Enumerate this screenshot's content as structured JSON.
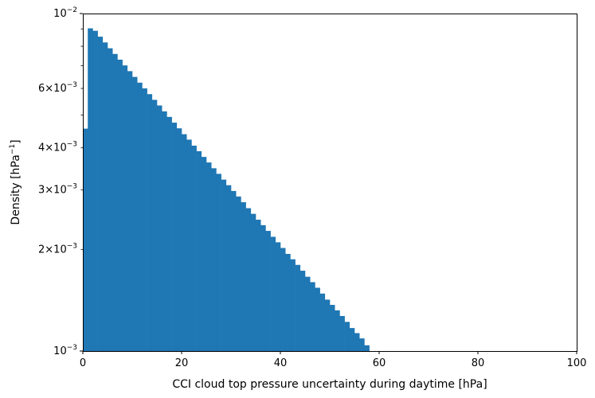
{
  "chart_data": {
    "type": "bar",
    "subtype": "histogram",
    "title": "",
    "xlabel": "CCI cloud top pressure uncertainty during daytime [hPa]",
    "ylabel_main": "Density [hPa",
    "ylabel_exp": "−1",
    "ylabel_close": "]",
    "xlim": [
      0,
      100
    ],
    "ylim": [
      0.001,
      0.01
    ],
    "yscale": "log",
    "bin_width": 1,
    "grid": false,
    "x_ticks": [
      {
        "value": 0,
        "label": "0"
      },
      {
        "value": 20,
        "label": "20"
      },
      {
        "value": 40,
        "label": "40"
      },
      {
        "value": 60,
        "label": "60"
      },
      {
        "value": 80,
        "label": "80"
      },
      {
        "value": 100,
        "label": "100"
      }
    ],
    "y_major_ticks": [
      {
        "value": 0.001,
        "base": "10",
        "exp": "−3"
      },
      {
        "value": 0.01,
        "base": "10",
        "exp": "−2"
      }
    ],
    "y_minor_ticks": [
      {
        "value": 0.002,
        "mant": "2",
        "base": "10",
        "exp": "−3"
      },
      {
        "value": 0.003,
        "mant": "3",
        "base": "10",
        "exp": "−3"
      },
      {
        "value": 0.004,
        "mant": "4",
        "base": "10",
        "exp": "−3"
      },
      {
        "value": 0.005,
        "mant": "",
        "base": "",
        "exp": ""
      },
      {
        "value": 0.006,
        "mant": "6",
        "base": "10",
        "exp": "−3"
      },
      {
        "value": 0.007,
        "mant": "",
        "base": "",
        "exp": ""
      },
      {
        "value": 0.008,
        "mant": "",
        "base": "",
        "exp": ""
      },
      {
        "value": 0.009,
        "mant": "",
        "base": "",
        "exp": ""
      }
    ],
    "bin_edges_start": 0,
    "values": [
      0.00456,
      0.00904,
      0.00889,
      0.00854,
      0.00821,
      0.00789,
      0.00759,
      0.0073,
      0.00702,
      0.00675,
      0.00649,
      0.00624,
      0.006,
      0.00577,
      0.00555,
      0.00534,
      0.00513,
      0.00494,
      0.00475,
      0.00457,
      0.00439,
      0.00423,
      0.00406,
      0.00391,
      0.00376,
      0.00362,
      0.00348,
      0.00335,
      0.00322,
      0.0031,
      0.00298,
      0.00287,
      0.00276,
      0.00265,
      0.00255,
      0.00245,
      0.00236,
      0.00227,
      0.00218,
      0.0021,
      0.00202,
      0.00194,
      0.00187,
      0.0018,
      0.00173,
      0.00166,
      0.0016,
      0.00154,
      0.00148,
      0.00142,
      0.00137,
      0.00132,
      0.00127,
      0.00122,
      0.00117,
      0.00113,
      0.00109,
      0.00104,
      0.001,
      0.00097,
      0.00093,
      0.00089,
      0.00086,
      0.00083,
      0.0008,
      0.00077
    ],
    "bar_color": "#1f77b4"
  }
}
